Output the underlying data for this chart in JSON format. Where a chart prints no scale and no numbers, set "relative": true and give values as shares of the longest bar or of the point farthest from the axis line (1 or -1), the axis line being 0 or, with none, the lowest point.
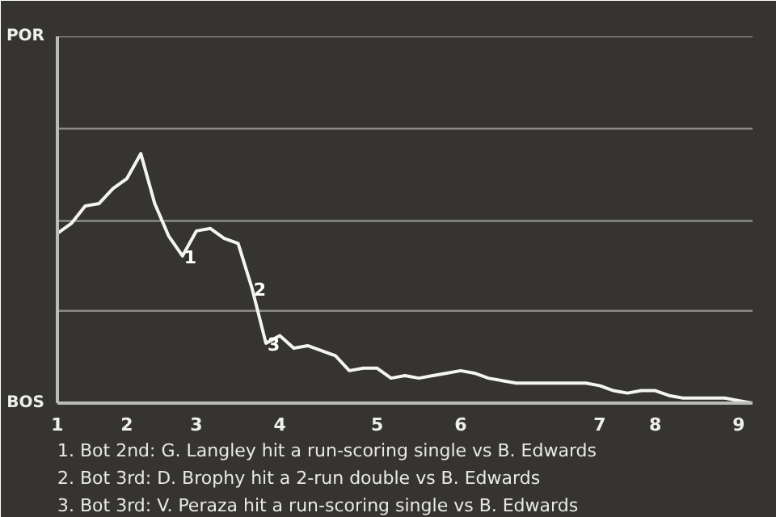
{
  "chart_data": {
    "type": "line",
    "relative": true,
    "categories": [
      "1",
      null,
      null,
      null,
      null,
      "2",
      null,
      null,
      null,
      null,
      "3",
      null,
      null,
      null,
      null,
      null,
      "4",
      null,
      null,
      null,
      null,
      null,
      null,
      "5",
      null,
      null,
      null,
      null,
      null,
      "6",
      null,
      null,
      null,
      null,
      null,
      null,
      null,
      null,
      null,
      "7",
      null,
      null,
      null,
      "8",
      null,
      null,
      null,
      null,
      null,
      "9",
      null
    ],
    "series": [
      {
        "color": "#f4f4f4",
        "values": [
          0.68,
          0.72,
          0.79,
          0.8,
          0.86,
          0.9,
          1,
          0.8,
          0.67,
          0.59,
          0.69,
          0.7,
          0.66,
          0.64,
          0.46,
          0.24,
          0.27,
          0.22,
          0.23,
          0.21,
          0.19,
          0.13,
          0.14,
          0.14,
          0.1,
          0.11,
          0.1,
          0.11,
          0.12,
          0.13,
          0.12,
          0.1,
          0.09,
          0.08,
          0.08,
          0.08,
          0.08,
          0.08,
          0.08,
          0.07,
          0.05,
          0.04,
          0.05,
          0.05,
          0.03,
          0.02,
          0.02,
          0.02,
          0.02,
          0.01,
          0.0
        ]
      }
    ],
    "ref_lines": [
      {
        "axis": "y",
        "value": 0.37,
        "color": "#8a8a88"
      },
      {
        "axis": "y",
        "value": 0.73,
        "color": "#8a8a88"
      },
      {
        "axis": "y",
        "value": 1.1,
        "color": "#8a8a88"
      },
      {
        "axis": "y",
        "value": 1.47,
        "color": "#8a8a88"
      }
    ],
    "line_style": "solid",
    "annotations": [
      "POR",
      "BOS",
      {
        "text": "1",
        "y": 0.59
      },
      {
        "text": "2",
        "y": 0.46
      },
      {
        "text": "3",
        "y": 0.24
      },
      "1. Bot 2nd: G. Langley hit a run-scoring single vs B. Edwards",
      "2. Bot 3rd: D. Brophy hit a 2-run double vs B. Edwards",
      "3. Bot 3rd: V. Peraza hit a run-scoring single vs B. Edwards"
    ]
  }
}
